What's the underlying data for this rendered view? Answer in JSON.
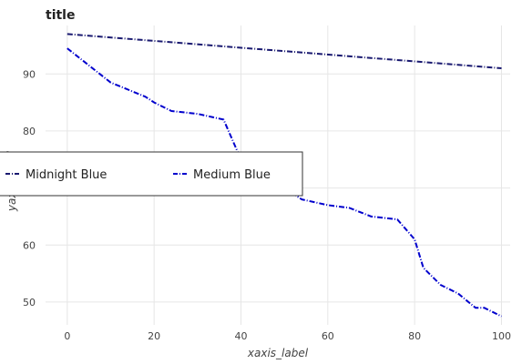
{
  "chart_data": {
    "type": "line",
    "title": "title",
    "xlabel": "xaxis_label",
    "ylabel": "yaxis_label",
    "xlim": [
      -5,
      102
    ],
    "ylim": [
      46,
      98.5
    ],
    "x_ticks": [
      0,
      20,
      40,
      60,
      80,
      100
    ],
    "y_ticks": [
      50,
      60,
      70,
      80,
      90
    ],
    "grid": true,
    "legend_position": "left",
    "series": [
      {
        "name": "Midnight Blue",
        "color": "#191970",
        "x": [
          0,
          100
        ],
        "y": [
          97.0,
          91.0
        ]
      },
      {
        "name": "Medium Blue",
        "color": "#0000CD",
        "x": [
          0,
          10,
          18,
          20,
          24,
          30,
          36,
          40,
          44,
          50,
          54,
          60,
          65,
          70,
          76,
          80,
          82,
          86,
          90,
          94,
          96,
          100
        ],
        "y": [
          94.5,
          88.5,
          86.0,
          85.0,
          83.5,
          83.0,
          82.0,
          75.0,
          74.0,
          70.0,
          68.0,
          67.0,
          66.5,
          65.0,
          64.5,
          61.0,
          56.0,
          53.0,
          51.5,
          49.0,
          49.0,
          47.5
        ]
      }
    ]
  }
}
